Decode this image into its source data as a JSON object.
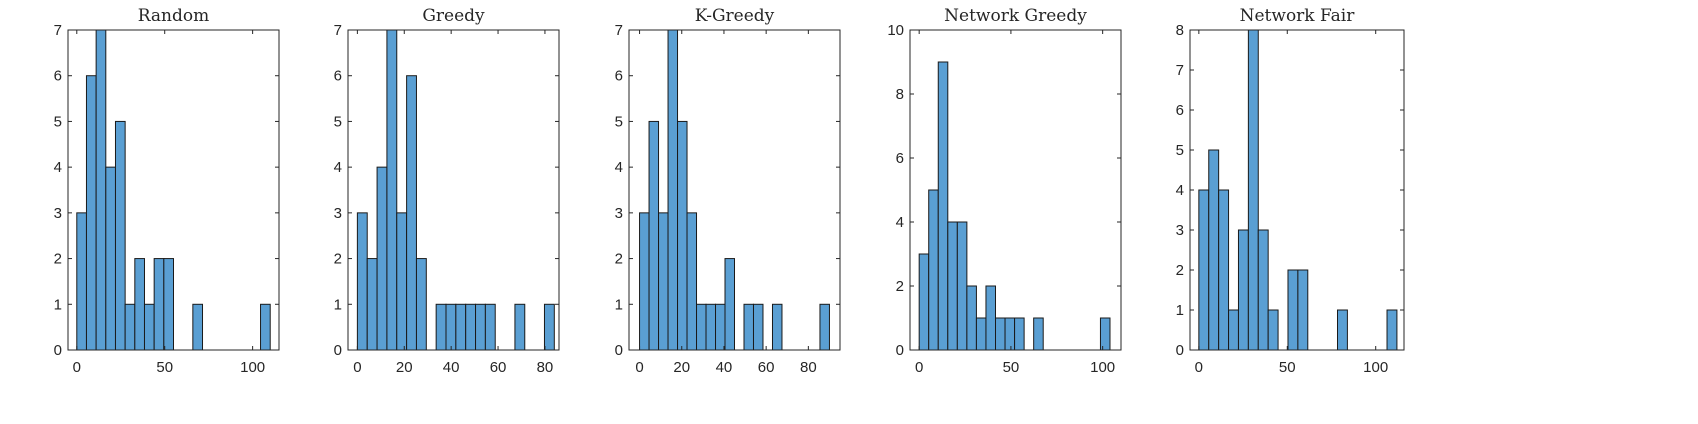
{
  "chart_data": [
    {
      "type": "bar",
      "title": "Random",
      "xlim": [
        -5,
        115
      ],
      "ylim": [
        0,
        7
      ],
      "xticks": [
        0,
        50,
        100
      ],
      "yticks": [
        0,
        1,
        2,
        3,
        4,
        5,
        6,
        7
      ],
      "bin_width": 5.5,
      "bins": [
        {
          "x0": 0,
          "x1": 5.5,
          "count": 3
        },
        {
          "x0": 5.5,
          "x1": 11,
          "count": 6
        },
        {
          "x0": 11,
          "x1": 16.5,
          "count": 7
        },
        {
          "x0": 16.5,
          "x1": 22,
          "count": 4
        },
        {
          "x0": 22,
          "x1": 27.5,
          "count": 5
        },
        {
          "x0": 27.5,
          "x1": 33,
          "count": 1
        },
        {
          "x0": 33,
          "x1": 38.5,
          "count": 2
        },
        {
          "x0": 38.5,
          "x1": 44,
          "count": 1
        },
        {
          "x0": 44,
          "x1": 49.5,
          "count": 2
        },
        {
          "x0": 49.5,
          "x1": 55,
          "count": 2
        },
        {
          "x0": 66,
          "x1": 71.5,
          "count": 1
        },
        {
          "x0": 104.5,
          "x1": 110,
          "count": 1
        }
      ]
    },
    {
      "type": "bar",
      "title": "Greedy",
      "xlim": [
        -4,
        86
      ],
      "ylim": [
        0,
        7
      ],
      "xticks": [
        0,
        20,
        40,
        60,
        80
      ],
      "yticks": [
        0,
        1,
        2,
        3,
        4,
        5,
        6,
        7
      ],
      "bin_width": 4.2,
      "bins": [
        {
          "x0": 0,
          "x1": 4.2,
          "count": 3
        },
        {
          "x0": 4.2,
          "x1": 8.4,
          "count": 2
        },
        {
          "x0": 8.4,
          "x1": 12.6,
          "count": 4
        },
        {
          "x0": 12.6,
          "x1": 16.8,
          "count": 7
        },
        {
          "x0": 16.8,
          "x1": 21,
          "count": 3
        },
        {
          "x0": 21,
          "x1": 25.2,
          "count": 6
        },
        {
          "x0": 25.2,
          "x1": 29.4,
          "count": 2
        },
        {
          "x0": 33.6,
          "x1": 37.8,
          "count": 1
        },
        {
          "x0": 37.8,
          "x1": 42,
          "count": 1
        },
        {
          "x0": 42,
          "x1": 46.2,
          "count": 1
        },
        {
          "x0": 46.2,
          "x1": 50.4,
          "count": 1
        },
        {
          "x0": 50.4,
          "x1": 54.6,
          "count": 1
        },
        {
          "x0": 54.6,
          "x1": 58.8,
          "count": 1
        },
        {
          "x0": 67.2,
          "x1": 71.4,
          "count": 1
        },
        {
          "x0": 79.8,
          "x1": 84,
          "count": 1
        }
      ]
    },
    {
      "type": "bar",
      "title": "K-Greedy",
      "xlim": [
        -5,
        95
      ],
      "ylim": [
        0,
        7
      ],
      "xticks": [
        0,
        20,
        40,
        60,
        80
      ],
      "yticks": [
        0,
        1,
        2,
        3,
        4,
        5,
        6,
        7
      ],
      "bin_width": 4.5,
      "bins": [
        {
          "x0": 0,
          "x1": 4.5,
          "count": 3
        },
        {
          "x0": 4.5,
          "x1": 9,
          "count": 5
        },
        {
          "x0": 9,
          "x1": 13.5,
          "count": 3
        },
        {
          "x0": 13.5,
          "x1": 18,
          "count": 7
        },
        {
          "x0": 18,
          "x1": 22.5,
          "count": 5
        },
        {
          "x0": 22.5,
          "x1": 27,
          "count": 3
        },
        {
          "x0": 27,
          "x1": 31.5,
          "count": 1
        },
        {
          "x0": 31.5,
          "x1": 36,
          "count": 1
        },
        {
          "x0": 36,
          "x1": 40.5,
          "count": 1
        },
        {
          "x0": 40.5,
          "x1": 45,
          "count": 2
        },
        {
          "x0": 49.5,
          "x1": 54,
          "count": 1
        },
        {
          "x0": 54,
          "x1": 58.5,
          "count": 1
        },
        {
          "x0": 63,
          "x1": 67.5,
          "count": 1
        },
        {
          "x0": 85.5,
          "x1": 90,
          "count": 1
        }
      ]
    },
    {
      "type": "bar",
      "title": "Network Greedy",
      "xlim": [
        -5,
        110
      ],
      "ylim": [
        0,
        10
      ],
      "xticks": [
        0,
        50,
        100
      ],
      "yticks": [
        0,
        2,
        4,
        6,
        8,
        10
      ],
      "bin_width": 5.2,
      "bins": [
        {
          "x0": 0,
          "x1": 5.2,
          "count": 3
        },
        {
          "x0": 5.2,
          "x1": 10.4,
          "count": 5
        },
        {
          "x0": 10.4,
          "x1": 15.6,
          "count": 9
        },
        {
          "x0": 15.6,
          "x1": 20.8,
          "count": 4
        },
        {
          "x0": 20.8,
          "x1": 26,
          "count": 4
        },
        {
          "x0": 26,
          "x1": 31.2,
          "count": 2
        },
        {
          "x0": 31.2,
          "x1": 36.4,
          "count": 1
        },
        {
          "x0": 36.4,
          "x1": 41.6,
          "count": 2
        },
        {
          "x0": 41.6,
          "x1": 46.8,
          "count": 1
        },
        {
          "x0": 46.8,
          "x1": 52,
          "count": 1
        },
        {
          "x0": 52,
          "x1": 57.2,
          "count": 1
        },
        {
          "x0": 62.4,
          "x1": 67.6,
          "count": 1
        },
        {
          "x0": 98.8,
          "x1": 104,
          "count": 1
        }
      ]
    },
    {
      "type": "bar",
      "title": "Network Fair",
      "xlim": [
        -5,
        116
      ],
      "ylim": [
        0,
        8
      ],
      "xticks": [
        0,
        50,
        100
      ],
      "yticks": [
        0,
        1,
        2,
        3,
        4,
        5,
        6,
        7,
        8
      ],
      "bin_width": 5.6,
      "bins": [
        {
          "x0": 0,
          "x1": 5.6,
          "count": 4
        },
        {
          "x0": 5.6,
          "x1": 11.2,
          "count": 5
        },
        {
          "x0": 11.2,
          "x1": 16.8,
          "count": 4
        },
        {
          "x0": 16.8,
          "x1": 22.4,
          "count": 1
        },
        {
          "x0": 22.4,
          "x1": 28,
          "count": 3
        },
        {
          "x0": 28,
          "x1": 33.6,
          "count": 8
        },
        {
          "x0": 33.6,
          "x1": 39.2,
          "count": 3
        },
        {
          "x0": 39.2,
          "x1": 44.8,
          "count": 1
        },
        {
          "x0": 50.4,
          "x1": 56,
          "count": 2
        },
        {
          "x0": 56,
          "x1": 61.6,
          "count": 2
        },
        {
          "x0": 78.4,
          "x1": 84,
          "count": 1
        },
        {
          "x0": 106.4,
          "x1": 112,
          "count": 1
        }
      ]
    }
  ]
}
